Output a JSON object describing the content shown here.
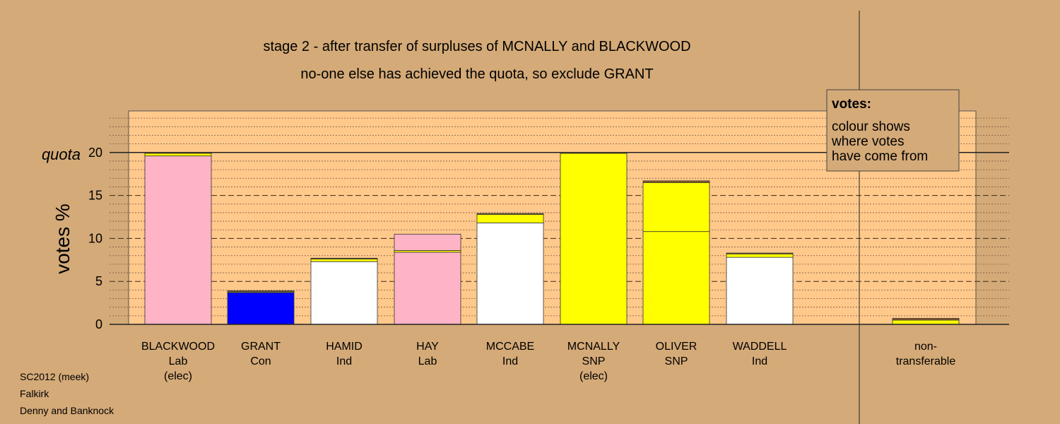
{
  "chart_data": {
    "type": "bar",
    "stacked": true,
    "title": "stage 2 - after transfer of surpluses of MCNALLY and BLACKWOOD",
    "subtitle": "no-one else has achieved the quota, so exclude GRANT",
    "ylabel": "votes %",
    "ylim": [
      0,
      25
    ],
    "yticks": [
      0,
      5,
      10,
      15,
      20
    ],
    "quota": 20,
    "quota_label": "quota",
    "grid": "dotted minor lines, dashed major lines",
    "legend_title": "votes:",
    "legend_lines": [
      "colour shows",
      "where votes",
      "have come from"
    ],
    "legend_position": "top-right",
    "colors": {
      "lab": "#ffb3c6",
      "con": "#0000ff",
      "ind": "#ffffff",
      "snp": "#ffff00",
      "other": "#8b5a2b",
      "plot_bg": "#ffc98b",
      "page_bg": "#d4aa78"
    },
    "bars": [
      {
        "label": [
          "BLACKWOOD",
          "Lab",
          "(elec)"
        ],
        "segments": [
          {
            "value": 19.6,
            "color": "#ffb3c6"
          },
          {
            "value": 0.3,
            "color": "#ffff00"
          },
          {
            "value": 0.1,
            "color": "#8b5a2b"
          }
        ]
      },
      {
        "label": [
          "GRANT",
          "Con"
        ],
        "segments": [
          {
            "value": 3.7,
            "color": "#0000ff"
          },
          {
            "value": 0.1,
            "color": "#ffff00"
          },
          {
            "value": 0.1,
            "color": "#8b5a2b"
          }
        ]
      },
      {
        "label": [
          "HAMID",
          "Ind"
        ],
        "segments": [
          {
            "value": 7.3,
            "color": "#ffffff"
          },
          {
            "value": 0.3,
            "color": "#ffff00"
          },
          {
            "value": 0.1,
            "color": "#8b5a2b"
          }
        ]
      },
      {
        "label": [
          "HAY",
          "Lab"
        ],
        "segments": [
          {
            "value": 8.4,
            "color": "#ffb3c6"
          },
          {
            "value": 0.2,
            "color": "#ffff00"
          },
          {
            "value": 1.9,
            "color": "#ffb3c6"
          }
        ]
      },
      {
        "label": [
          "MCCABE",
          "Ind"
        ],
        "segments": [
          {
            "value": 11.8,
            "color": "#ffffff"
          },
          {
            "value": 1.0,
            "color": "#ffff00"
          },
          {
            "value": 0.1,
            "color": "#8b5a2b"
          }
        ]
      },
      {
        "label": [
          "MCNALLY",
          "SNP",
          "(elec)"
        ],
        "segments": [
          {
            "value": 19.9,
            "color": "#ffff00"
          },
          {
            "value": 0.1,
            "color": "#8b5a2b"
          }
        ]
      },
      {
        "label": [
          "OLIVER",
          "SNP"
        ],
        "segments": [
          {
            "value": 10.8,
            "color": "#ffff00"
          },
          {
            "value": 5.7,
            "color": "#ffff00"
          },
          {
            "value": 0.2,
            "color": "#8b5a2b"
          }
        ]
      },
      {
        "label": [
          "WADDELL",
          "Ind"
        ],
        "segments": [
          {
            "value": 7.8,
            "color": "#ffffff"
          },
          {
            "value": 0.4,
            "color": "#ffff00"
          },
          {
            "value": 0.1,
            "color": "#8b5a2b"
          }
        ]
      },
      {
        "label": [
          "non-",
          "transferable"
        ],
        "segments": [
          {
            "value": 0.5,
            "color": "#ffff00"
          },
          {
            "value": 0.2,
            "color": "#8b5a2b"
          }
        ]
      }
    ]
  },
  "footer": {
    "line1": "SC2012 (meek)",
    "line2": "Falkirk",
    "line3": "Denny and Banknock"
  }
}
